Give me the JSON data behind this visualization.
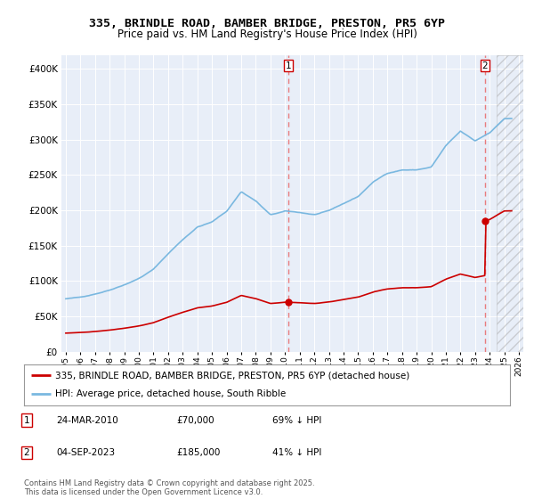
{
  "title1": "335, BRINDLE ROAD, BAMBER BRIDGE, PRESTON, PR5 6YP",
  "title2": "Price paid vs. HM Land Registry's House Price Index (HPI)",
  "legend_line1": "335, BRINDLE ROAD, BAMBER BRIDGE, PRESTON, PR5 6YP (detached house)",
  "legend_line2": "HPI: Average price, detached house, South Ribble",
  "annotation1_label": "1",
  "annotation1_date": "24-MAR-2010",
  "annotation1_price": "£70,000",
  "annotation1_hpi": "69% ↓ HPI",
  "annotation2_label": "2",
  "annotation2_date": "04-SEP-2023",
  "annotation2_price": "£185,000",
  "annotation2_hpi": "41% ↓ HPI",
  "footer": "Contains HM Land Registry data © Crown copyright and database right 2025.\nThis data is licensed under the Open Government Licence v3.0.",
  "sale1_year": 2010.23,
  "sale1_price": 70000,
  "sale2_year": 2023.67,
  "sale2_price": 185000,
  "hpi_color": "#7ab8e0",
  "price_color": "#cc0000",
  "dashed_line_color": "#e87070",
  "background_color": "#ffffff",
  "plot_bg_color": "#e8eef8",
  "hatch_color": "#cccccc",
  "ylim_max": 420000,
  "ylim_min": 0,
  "xmin": 1994.7,
  "xmax": 2026.3,
  "hatch_start": 2024.5
}
